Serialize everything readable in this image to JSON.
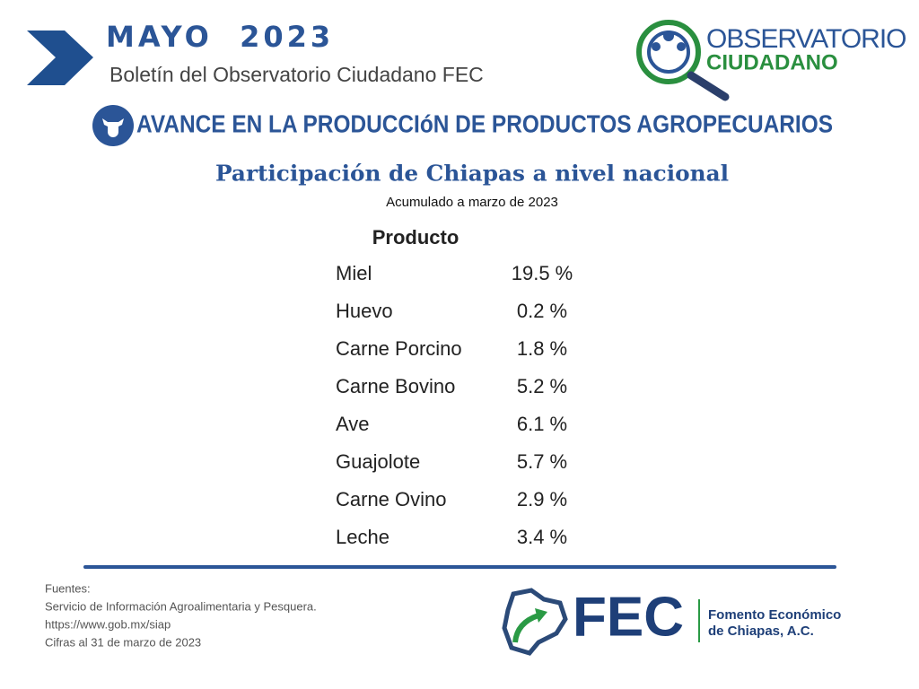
{
  "header": {
    "title": "MAYO  2023",
    "subtitle": "Boletín del Observatorio Ciudadano FEC"
  },
  "logo": {
    "line1": "OBSERVATORIO",
    "line2": "CIUDADANO"
  },
  "section_title": "AVANCE EN LA PRODUCCIóN DE PRODUCTOS AGROPECUARIOS",
  "table": {
    "title": "Participación de Chiapas a nivel nacional",
    "subtitle": "Acumulado a marzo de 2023",
    "header": "Producto",
    "rows": [
      [
        "Miel",
        "19.5 %"
      ],
      [
        "Huevo",
        "0.2 %"
      ],
      [
        "Carne Porcino",
        "1.8 %"
      ],
      [
        "Carne Bovino",
        "5.2 %"
      ],
      [
        "Ave",
        "6.1 %"
      ],
      [
        "Guajolote",
        "5.7 %"
      ],
      [
        "Carne Ovino",
        "2.9 %"
      ],
      [
        "Leche",
        "3.4 %"
      ]
    ]
  },
  "footer": {
    "sources": [
      "Fuentes:",
      "Servicio de Información Agroalimentaria y Pesquera.",
      "https://www.gob.mx/siap",
      "Cifras al 31 de marzo de 2023"
    ],
    "brand": "FEC",
    "brand_name": [
      "Fomento Económico",
      "de Chiapas, A.C."
    ]
  }
}
